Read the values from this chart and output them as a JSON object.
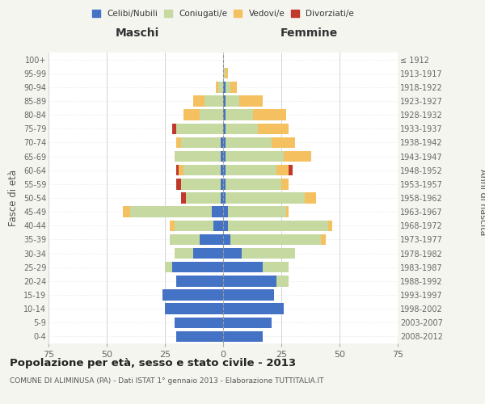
{
  "age_groups": [
    "0-4",
    "5-9",
    "10-14",
    "15-19",
    "20-24",
    "25-29",
    "30-34",
    "35-39",
    "40-44",
    "45-49",
    "50-54",
    "55-59",
    "60-64",
    "65-69",
    "70-74",
    "75-79",
    "80-84",
    "85-89",
    "90-94",
    "95-99",
    "100+"
  ],
  "birth_years": [
    "2008-2012",
    "2003-2007",
    "1998-2002",
    "1993-1997",
    "1988-1992",
    "1983-1987",
    "1978-1982",
    "1973-1977",
    "1968-1972",
    "1963-1967",
    "1958-1962",
    "1953-1957",
    "1948-1952",
    "1943-1947",
    "1938-1942",
    "1933-1937",
    "1928-1932",
    "1923-1927",
    "1918-1922",
    "1913-1917",
    "≤ 1912"
  ],
  "male_celibi": [
    20,
    21,
    25,
    26,
    20,
    22,
    13,
    10,
    4,
    5,
    1,
    1,
    1,
    1,
    1,
    0,
    0,
    0,
    0,
    0,
    0
  ],
  "male_coniugati": [
    0,
    0,
    0,
    0,
    0,
    3,
    8,
    13,
    17,
    35,
    15,
    17,
    16,
    20,
    17,
    20,
    10,
    8,
    2,
    0,
    0
  ],
  "male_vedovi": [
    0,
    0,
    0,
    0,
    0,
    0,
    0,
    0,
    2,
    3,
    0,
    0,
    2,
    0,
    2,
    0,
    7,
    5,
    1,
    0,
    0
  ],
  "male_divorziati": [
    0,
    0,
    0,
    0,
    0,
    0,
    0,
    0,
    0,
    0,
    2,
    2,
    1,
    0,
    0,
    2,
    0,
    0,
    0,
    0,
    0
  ],
  "female_celibi": [
    17,
    21,
    26,
    22,
    23,
    17,
    8,
    3,
    2,
    2,
    1,
    1,
    1,
    1,
    1,
    1,
    1,
    1,
    1,
    0,
    0
  ],
  "female_coniugati": [
    0,
    0,
    0,
    0,
    5,
    11,
    23,
    39,
    43,
    25,
    34,
    24,
    22,
    25,
    20,
    14,
    12,
    6,
    2,
    1,
    0
  ],
  "female_vedovi": [
    0,
    0,
    0,
    0,
    0,
    0,
    0,
    2,
    2,
    1,
    5,
    3,
    5,
    12,
    10,
    13,
    14,
    10,
    3,
    1,
    0
  ],
  "female_divorziati": [
    0,
    0,
    0,
    0,
    0,
    0,
    0,
    0,
    0,
    0,
    0,
    0,
    2,
    0,
    0,
    0,
    0,
    0,
    0,
    0,
    0
  ],
  "color_celibi": "#4472c4",
  "color_coniugati": "#c5d9a0",
  "color_vedovi": "#f5c060",
  "color_divorziati": "#c0392b",
  "xlim": 75,
  "title": "Popolazione per età, sesso e stato civile - 2013",
  "subtitle": "COMUNE DI ALIMINUSA (PA) - Dati ISTAT 1° gennaio 2013 - Elaborazione TUTTITALIA.IT",
  "ylabel_left": "Fasce di età",
  "ylabel_right": "Anni di nascita",
  "xlabel_maschi": "Maschi",
  "xlabel_femmine": "Femmine",
  "bg_color": "#f5f5f0",
  "plot_bg_color": "#ffffff"
}
